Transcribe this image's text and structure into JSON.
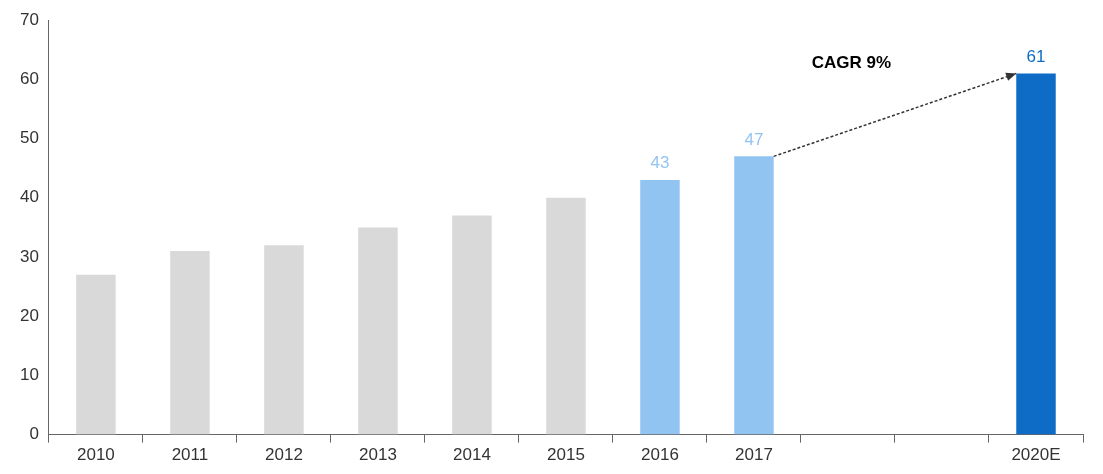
{
  "chart_data": {
    "type": "bar",
    "categories": [
      "2010",
      "2011",
      "2012",
      "2013",
      "2014",
      "2015",
      "2016",
      "2017",
      null,
      null,
      "2020E"
    ],
    "values": [
      27,
      31,
      32,
      35,
      37,
      40,
      43,
      47,
      null,
      null,
      61
    ],
    "colors": [
      "#d9d9d9",
      "#d9d9d9",
      "#d9d9d9",
      "#d9d9d9",
      "#d9d9d9",
      "#d9d9d9",
      "#92c4f2",
      "#92c4f2",
      "#d9d9d9",
      "#d9d9d9",
      "#0f6cc6"
    ],
    "value_labels": [
      null,
      null,
      null,
      null,
      null,
      null,
      "43",
      "47",
      null,
      null,
      "61"
    ],
    "annotations": [
      "CAGR 9%"
    ],
    "ylim": [
      0,
      70
    ],
    "yticks": [
      0,
      10,
      20,
      30,
      40,
      50,
      60,
      70
    ],
    "grid": false,
    "legend": false
  }
}
